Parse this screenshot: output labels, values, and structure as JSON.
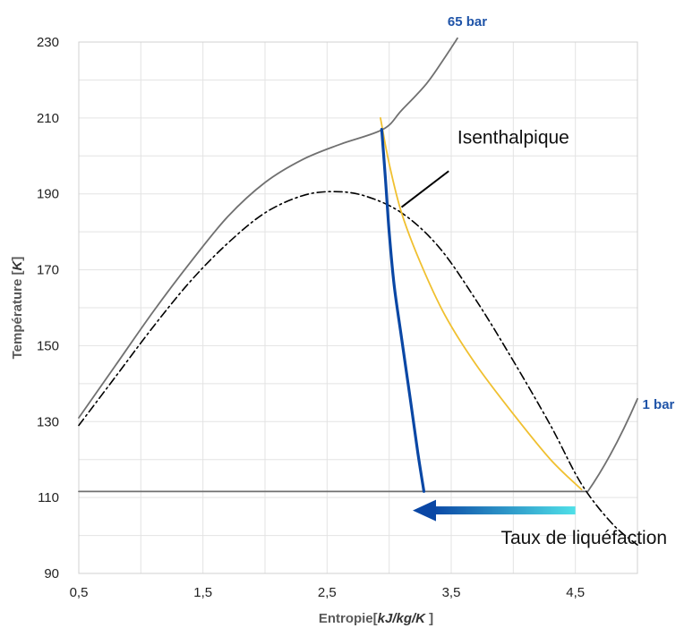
{
  "chart_data": {
    "type": "line",
    "title": "",
    "xlabel": {
      "main": "Entropie",
      "unit": "kJ/kg/K"
    },
    "ylabel": {
      "main": "Température",
      "unit": "K"
    },
    "xlim": [
      0.5,
      5.0
    ],
    "ylim": [
      90,
      230
    ],
    "x_ticks": [
      0.5,
      1.5,
      2.5,
      3.5,
      4.5
    ],
    "x_tick_labels": [
      "0,5",
      "1,5",
      "2,5",
      "3,5",
      "4,5"
    ],
    "y_ticks": [
      90,
      110,
      130,
      150,
      170,
      190,
      210,
      230
    ],
    "y_tick_labels": [
      "90",
      "110",
      "130",
      "150",
      "170",
      "190",
      "210",
      "230"
    ],
    "grid": true,
    "series": [
      {
        "name": "65 bar",
        "color": "#707070",
        "style": "solid",
        "points": [
          [
            0.5,
            131
          ],
          [
            0.8,
            145
          ],
          [
            1.1,
            159
          ],
          [
            1.4,
            172
          ],
          [
            1.7,
            184
          ],
          [
            2.0,
            193
          ],
          [
            2.3,
            199
          ],
          [
            2.6,
            203
          ],
          [
            2.95,
            207
          ],
          [
            3.1,
            212
          ],
          [
            3.3,
            219
          ],
          [
            3.45,
            226
          ],
          [
            3.55,
            231
          ]
        ]
      },
      {
        "name": "1 bar",
        "color": "#707070",
        "style": "solid",
        "points": [
          [
            0.5,
            111.6
          ],
          [
            4.6,
            111.6
          ],
          [
            4.8,
            121
          ],
          [
            5.0,
            136
          ]
        ]
      },
      {
        "color": "#000000",
        "style": "dash-dot",
        "points": [
          [
            0.5,
            129
          ],
          [
            0.8,
            142
          ],
          [
            1.1,
            155
          ],
          [
            1.4,
            167
          ],
          [
            1.7,
            177
          ],
          [
            2.0,
            185
          ],
          [
            2.3,
            189.5
          ],
          [
            2.55,
            190.6
          ],
          [
            2.8,
            189.5
          ],
          [
            3.1,
            185
          ],
          [
            3.4,
            176
          ],
          [
            3.7,
            162
          ],
          [
            4.0,
            146
          ],
          [
            4.3,
            129
          ],
          [
            4.55,
            113.5
          ],
          [
            4.8,
            103
          ],
          [
            5.0,
            97.5
          ]
        ]
      },
      {
        "color": "#f0c030",
        "style": "solid",
        "points": [
          [
            2.93,
            210
          ],
          [
            3.0,
            198
          ],
          [
            3.1,
            185
          ],
          [
            3.25,
            172
          ],
          [
            3.45,
            158
          ],
          [
            3.7,
            145
          ],
          [
            4.0,
            132
          ],
          [
            4.3,
            120
          ],
          [
            4.55,
            112.1
          ]
        ]
      },
      {
        "color": "#0a47a5",
        "style": "solid-thick",
        "points": [
          [
            2.94,
            207
          ],
          [
            2.97,
            194
          ],
          [
            3.0,
            180
          ],
          [
            3.04,
            166
          ],
          [
            3.1,
            152
          ],
          [
            3.17,
            136
          ],
          [
            3.23,
            122
          ],
          [
            3.28,
            111.6
          ]
        ]
      }
    ],
    "annotations": [
      {
        "text": "65 bar",
        "color": "#1f54a8",
        "x": 3.63,
        "y": 234.3
      },
      {
        "text": "1 bar",
        "color": "#1f54a8",
        "x": 5.04,
        "y": 133.4
      },
      {
        "text": "Isenthalpique",
        "color": "#111111",
        "x": 3.55,
        "y": 203.2,
        "pointer_from": [
          3.48,
          196
        ],
        "pointer_to": [
          3.1,
          186.5
        ]
      },
      {
        "text": "Taux de liquéfaction",
        "color": "#111111",
        "x": 3.9,
        "y": 97.8,
        "arrow_from": [
          4.5,
          106.6
        ],
        "arrow_to": [
          3.19,
          106.6
        ],
        "arrow_colors": [
          "#0a47a5",
          "#4fe0e8"
        ]
      }
    ]
  }
}
